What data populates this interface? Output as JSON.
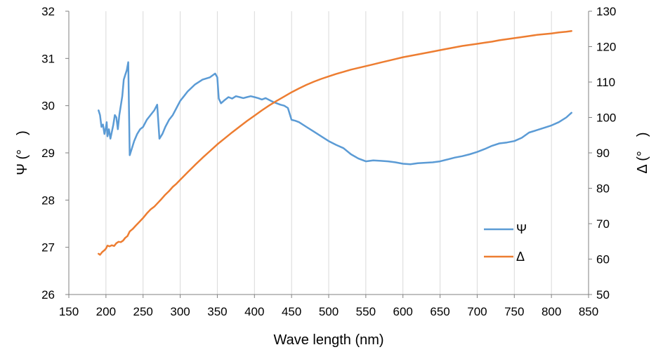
{
  "chart_data": {
    "type": "line",
    "title": "",
    "xlabel": "Wave length (nm)",
    "ylabel_left": "Ψ (°　)",
    "ylabel_right": "Δ (°　)",
    "xlim": [
      150,
      850
    ],
    "xticks": [
      150,
      200,
      250,
      300,
      350,
      400,
      450,
      500,
      550,
      600,
      650,
      700,
      750,
      800,
      850
    ],
    "ylim_left": [
      26,
      32
    ],
    "yticks_left": [
      26,
      27,
      28,
      29,
      30,
      31,
      32
    ],
    "ylim_right": [
      50,
      130
    ],
    "yticks_right": [
      50,
      60,
      70,
      80,
      90,
      100,
      110,
      120,
      130
    ],
    "grid": "vertical",
    "legend_position": "bottom-right",
    "series": [
      {
        "name": "Ψ",
        "axis": "left",
        "color": "#5b9bd5",
        "points": [
          [
            190,
            29.9
          ],
          [
            192,
            29.8
          ],
          [
            194,
            29.55
          ],
          [
            196,
            29.6
          ],
          [
            198,
            29.4
          ],
          [
            200,
            29.55
          ],
          [
            201,
            29.65
          ],
          [
            202,
            29.35
          ],
          [
            204,
            29.5
          ],
          [
            206,
            29.3
          ],
          [
            208,
            29.45
          ],
          [
            210,
            29.6
          ],
          [
            212,
            29.8
          ],
          [
            214,
            29.75
          ],
          [
            216,
            29.5
          ],
          [
            218,
            29.8
          ],
          [
            220,
            30.0
          ],
          [
            222,
            30.2
          ],
          [
            224,
            30.55
          ],
          [
            226,
            30.65
          ],
          [
            228,
            30.75
          ],
          [
            230,
            30.92
          ],
          [
            232,
            28.95
          ],
          [
            235,
            29.1
          ],
          [
            238,
            29.25
          ],
          [
            242,
            29.4
          ],
          [
            246,
            29.5
          ],
          [
            250,
            29.55
          ],
          [
            255,
            29.7
          ],
          [
            260,
            29.8
          ],
          [
            265,
            29.9
          ],
          [
            269,
            30.02
          ],
          [
            272,
            29.3
          ],
          [
            276,
            29.4
          ],
          [
            280,
            29.55
          ],
          [
            285,
            29.7
          ],
          [
            290,
            29.8
          ],
          [
            295,
            29.95
          ],
          [
            300,
            30.1
          ],
          [
            305,
            30.2
          ],
          [
            310,
            30.3
          ],
          [
            320,
            30.45
          ],
          [
            330,
            30.55
          ],
          [
            340,
            30.6
          ],
          [
            347,
            30.68
          ],
          [
            350,
            30.6
          ],
          [
            352,
            30.15
          ],
          [
            355,
            30.05
          ],
          [
            360,
            30.12
          ],
          [
            365,
            30.18
          ],
          [
            370,
            30.15
          ],
          [
            375,
            30.2
          ],
          [
            380,
            30.18
          ],
          [
            385,
            30.16
          ],
          [
            390,
            30.18
          ],
          [
            395,
            30.2
          ],
          [
            400,
            30.18
          ],
          [
            405,
            30.16
          ],
          [
            410,
            30.13
          ],
          [
            415,
            30.16
          ],
          [
            420,
            30.12
          ],
          [
            425,
            30.08
          ],
          [
            430,
            30.05
          ],
          [
            435,
            30.02
          ],
          [
            440,
            30.0
          ],
          [
            445,
            29.95
          ],
          [
            450,
            29.7
          ],
          [
            455,
            29.68
          ],
          [
            460,
            29.65
          ],
          [
            470,
            29.55
          ],
          [
            480,
            29.45
          ],
          [
            490,
            29.35
          ],
          [
            500,
            29.25
          ],
          [
            510,
            29.17
          ],
          [
            520,
            29.1
          ],
          [
            530,
            28.97
          ],
          [
            540,
            28.88
          ],
          [
            550,
            28.82
          ],
          [
            560,
            28.84
          ],
          [
            570,
            28.83
          ],
          [
            580,
            28.82
          ],
          [
            590,
            28.8
          ],
          [
            600,
            28.77
          ],
          [
            610,
            28.76
          ],
          [
            620,
            28.78
          ],
          [
            630,
            28.79
          ],
          [
            640,
            28.8
          ],
          [
            650,
            28.82
          ],
          [
            660,
            28.86
          ],
          [
            670,
            28.9
          ],
          [
            680,
            28.93
          ],
          [
            690,
            28.97
          ],
          [
            700,
            29.02
          ],
          [
            710,
            29.08
          ],
          [
            720,
            29.15
          ],
          [
            730,
            29.2
          ],
          [
            740,
            29.22
          ],
          [
            750,
            29.25
          ],
          [
            760,
            29.32
          ],
          [
            770,
            29.43
          ],
          [
            780,
            29.48
          ],
          [
            790,
            29.53
          ],
          [
            800,
            29.58
          ],
          [
            810,
            29.65
          ],
          [
            820,
            29.75
          ],
          [
            827,
            29.85
          ]
        ]
      },
      {
        "name": "Δ",
        "axis": "right",
        "color": "#ed7d31",
        "points": [
          [
            190,
            61.5
          ],
          [
            192,
            61.2
          ],
          [
            195,
            62.0
          ],
          [
            198,
            62.5
          ],
          [
            200,
            63.0
          ],
          [
            202,
            63.8
          ],
          [
            205,
            63.6
          ],
          [
            208,
            63.9
          ],
          [
            211,
            63.7
          ],
          [
            214,
            64.5
          ],
          [
            217,
            64.9
          ],
          [
            220,
            64.8
          ],
          [
            223,
            65.2
          ],
          [
            226,
            66.0
          ],
          [
            229,
            66.5
          ],
          [
            232,
            67.8
          ],
          [
            236,
            68.5
          ],
          [
            240,
            69.4
          ],
          [
            245,
            70.5
          ],
          [
            250,
            71.6
          ],
          [
            255,
            72.9
          ],
          [
            260,
            74.0
          ],
          [
            265,
            74.8
          ],
          [
            270,
            75.9
          ],
          [
            275,
            77.0
          ],
          [
            280,
            78.2
          ],
          [
            285,
            79.2
          ],
          [
            290,
            80.4
          ],
          [
            295,
            81.3
          ],
          [
            300,
            82.4
          ],
          [
            310,
            84.5
          ],
          [
            320,
            86.6
          ],
          [
            330,
            88.6
          ],
          [
            340,
            90.5
          ],
          [
            350,
            92.4
          ],
          [
            360,
            94.1
          ],
          [
            370,
            95.8
          ],
          [
            380,
            97.4
          ],
          [
            390,
            99.0
          ],
          [
            400,
            100.5
          ],
          [
            410,
            102.0
          ],
          [
            420,
            103.4
          ],
          [
            430,
            104.7
          ],
          [
            440,
            105.9
          ],
          [
            450,
            107.1
          ],
          [
            460,
            108.2
          ],
          [
            470,
            109.2
          ],
          [
            480,
            110.1
          ],
          [
            490,
            110.9
          ],
          [
            500,
            111.6
          ],
          [
            510,
            112.3
          ],
          [
            520,
            112.9
          ],
          [
            530,
            113.5
          ],
          [
            540,
            114.0
          ],
          [
            550,
            114.5
          ],
          [
            560,
            115.0
          ],
          [
            570,
            115.5
          ],
          [
            580,
            116.0
          ],
          [
            590,
            116.5
          ],
          [
            600,
            117.0
          ],
          [
            610,
            117.4
          ],
          [
            620,
            117.8
          ],
          [
            630,
            118.2
          ],
          [
            640,
            118.6
          ],
          [
            650,
            119.0
          ],
          [
            660,
            119.4
          ],
          [
            670,
            119.8
          ],
          [
            680,
            120.2
          ],
          [
            690,
            120.5
          ],
          [
            700,
            120.8
          ],
          [
            710,
            121.1
          ],
          [
            720,
            121.4
          ],
          [
            730,
            121.8
          ],
          [
            740,
            122.1
          ],
          [
            750,
            122.4
          ],
          [
            760,
            122.7
          ],
          [
            770,
            123.0
          ],
          [
            780,
            123.3
          ],
          [
            790,
            123.5
          ],
          [
            800,
            123.7
          ],
          [
            810,
            124.0
          ],
          [
            820,
            124.2
          ],
          [
            827,
            124.4
          ]
        ]
      }
    ]
  }
}
